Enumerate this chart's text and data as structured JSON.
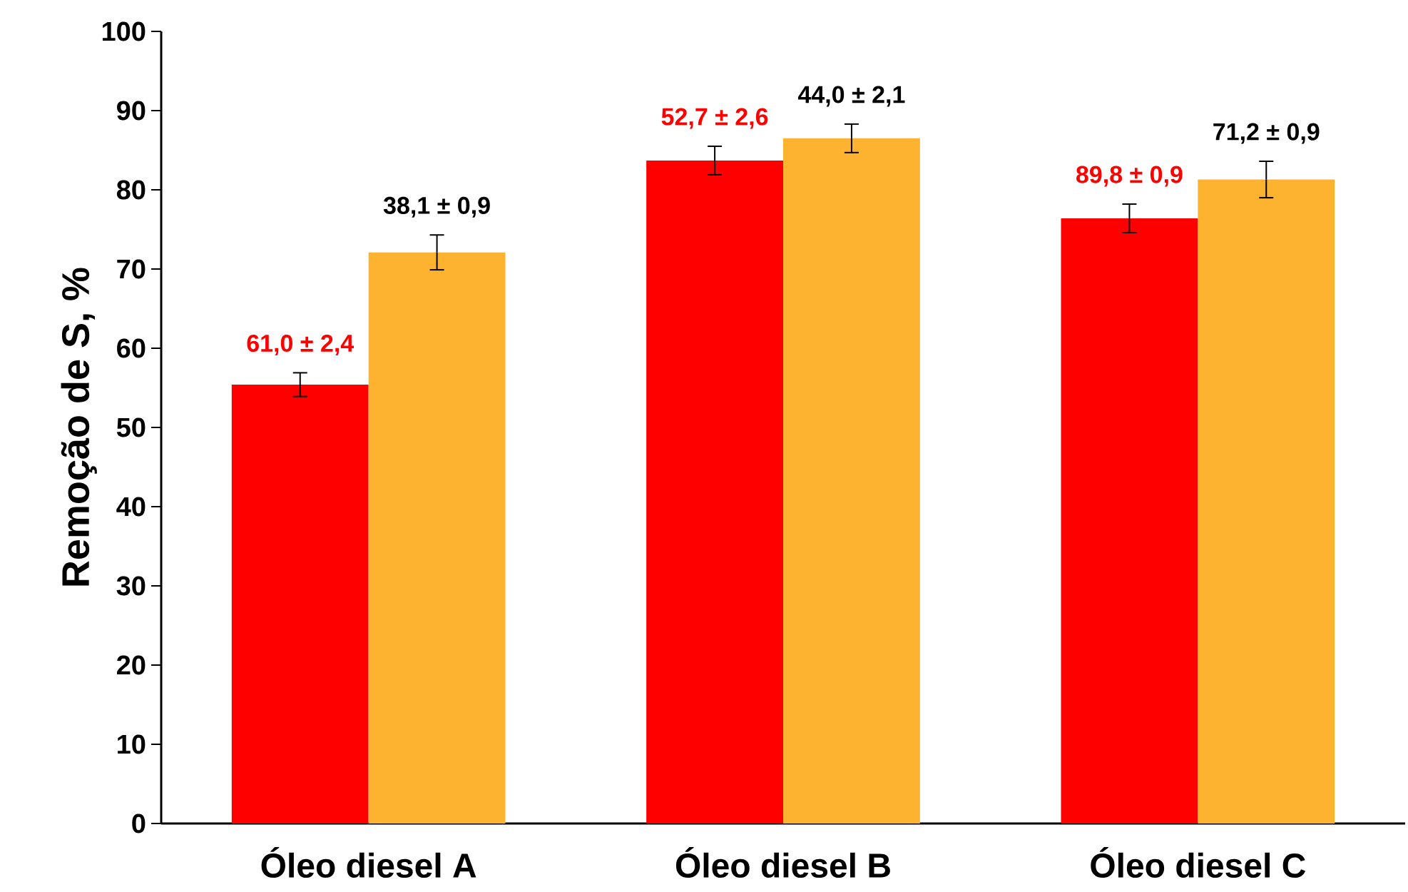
{
  "chart_data": {
    "type": "bar",
    "ylabel": "Remoção de S, %",
    "categories": [
      "Óleo diesel A",
      "Óleo diesel B",
      "Óleo diesel C"
    ],
    "ylim": [
      0,
      100
    ],
    "yticks": [
      0,
      10,
      20,
      30,
      40,
      50,
      60,
      70,
      80,
      90,
      100
    ],
    "grid": false,
    "series": [
      {
        "color": "#ff0000",
        "values": [
          55.4,
          83.7,
          76.4
        ],
        "errors": [
          1.5,
          1.8,
          1.8
        ]
      },
      {
        "color": "#fdb32f",
        "values": [
          72.1,
          86.5,
          81.3
        ],
        "errors": [
          2.2,
          1.8,
          2.3
        ]
      }
    ],
    "annotations": [
      "61,0 ± 2,4",
      "52,7 ± 2,6",
      "89,8 ± 0,9",
      "38,1 ± 0,9",
      "44,0 ± 2,1",
      "71,2 ± 0,9"
    ]
  }
}
